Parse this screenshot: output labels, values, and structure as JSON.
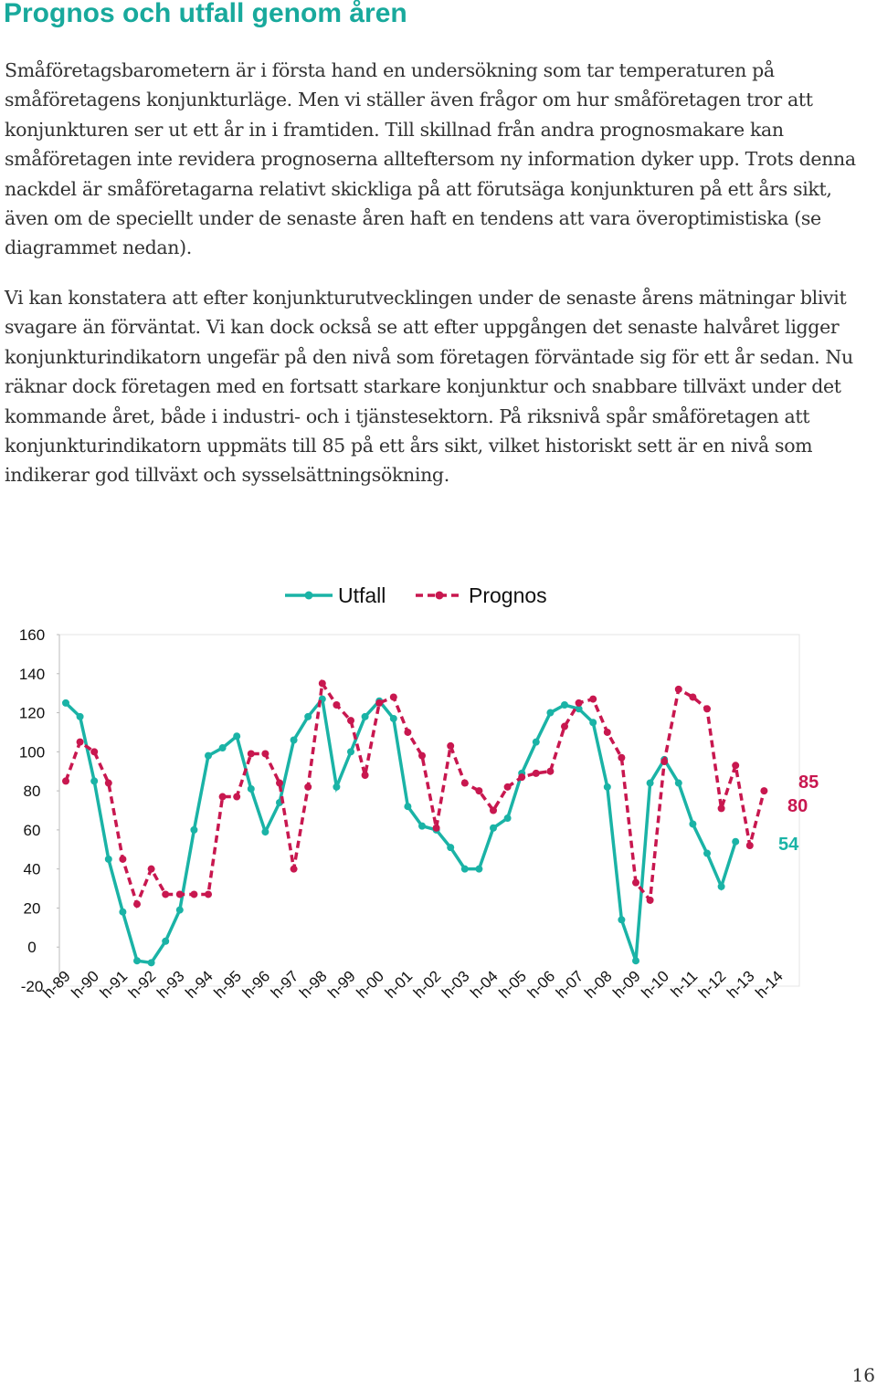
{
  "header": {
    "title": "Prognos och utfall genom åren"
  },
  "paragraphs": [
    "Småföretagsbarometern är i första hand en undersökning som tar temperaturen på småföretagens konjunkturläge. Men vi ställer även frågor om hur småföretagen tror att konjunkturen ser ut ett år in i framtiden. Till skillnad från andra prognosmakare kan småföretagen inte revidera prognoserna allteftersom ny information dyker upp. Trots denna nackdel är småföretagarna relativt skickliga på att förutsäga konjunkturen på ett års sikt, även om de speciellt under de senaste åren haft en tendens att vara överoptimistiska (se diagrammet nedan).",
    "Vi kan konstatera att efter konjunkturutvecklingen under de senaste årens mätningar blivit svagare än förväntat. Vi kan dock också se att efter uppgången det senaste halvåret ligger konjunkturindikatorn ungefär på den nivå som företagen förväntade sig för ett år sedan. Nu räknar dock företagen med en fortsatt starkare konjunktur och snabbare tillväxt under det kommande året, både i industri- och i tjänstesektorn. På riksnivå spår småföretagen att konjunkturindikatorn uppmäts till 85 på ett års sikt, vilket historiskt sett är en nivå som indikerar god tillväxt och sysselsättningsökning."
  ],
  "chart_data": {
    "type": "line",
    "categories": [
      "h-89",
      null,
      "h-90",
      null,
      "h-91",
      null,
      "h-92",
      null,
      "h-93",
      null,
      "h-94",
      null,
      "h-95",
      null,
      "h-96",
      null,
      "h-97",
      null,
      "h-98",
      null,
      "h-99",
      null,
      "h-00",
      null,
      "h-01",
      null,
      "h-02",
      null,
      "h-03",
      null,
      "h-04",
      null,
      "h-05",
      null,
      "h-06",
      null,
      "h-07",
      null,
      "h-08",
      null,
      "h-09",
      null,
      "h-10",
      null,
      "h-11",
      null,
      "h-12",
      null,
      "h-13",
      null,
      "h-14",
      null
    ],
    "series": [
      {
        "name": "Utfall",
        "color": "#1ab3a6",
        "dash": false,
        "values": [
          125,
          118,
          85,
          45,
          18,
          -7,
          -8,
          3,
          19,
          60,
          98,
          102,
          108,
          81,
          59,
          74,
          106,
          118,
          127,
          82,
          100,
          118,
          126,
          117,
          72,
          62,
          60,
          51,
          40,
          40,
          61,
          66,
          89,
          105,
          120,
          124,
          122,
          115,
          82,
          14,
          -7,
          84,
          96,
          84,
          63,
          48,
          31,
          54,
          null,
          null,
          null,
          null
        ]
      },
      {
        "name": "Prognos",
        "color": "#c8174f",
        "dash": true,
        "values": [
          85,
          105,
          100,
          84,
          45,
          22,
          40,
          27,
          27,
          27,
          27,
          77,
          77,
          99,
          99,
          84,
          40,
          82,
          135,
          124,
          116,
          88,
          125,
          128,
          110,
          98,
          61,
          103,
          84,
          80,
          70,
          82,
          87,
          89,
          90,
          113,
          125,
          127,
          110,
          97,
          33,
          24,
          95,
          132,
          128,
          122,
          71,
          93,
          52,
          80,
          null,
          null
        ]
      }
    ],
    "ylim": [
      -20,
      160
    ],
    "yticks": [
      -20,
      0,
      20,
      40,
      60,
      80,
      100,
      120,
      140,
      160
    ],
    "annotations": [
      {
        "text": "85",
        "color": "#c8174f"
      },
      {
        "text": "80",
        "color": "#c8174f"
      },
      {
        "text": "54",
        "color": "#1ab3a6"
      }
    ]
  },
  "page_number": "16"
}
